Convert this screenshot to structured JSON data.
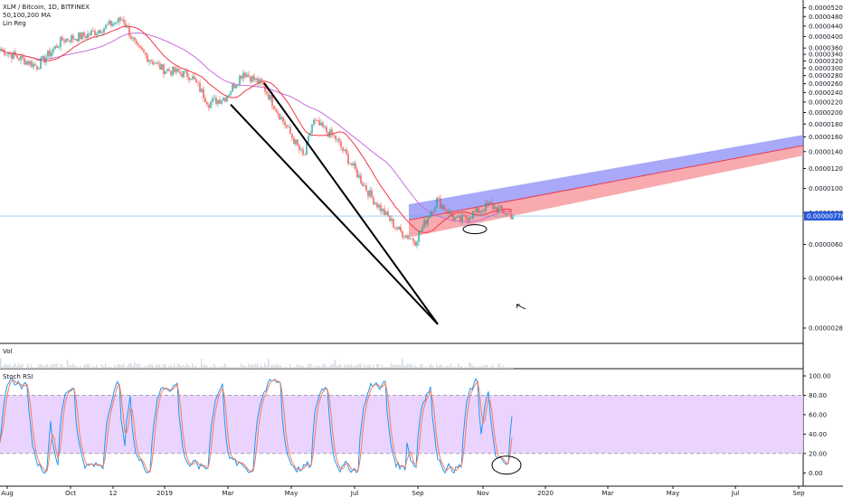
{
  "header": {
    "symbol_line": "XLM / Bitcoin, 1D, BITFINEX",
    "indicator_ma": "50,100,200 MA",
    "indicator_linreg": "Lin Reg"
  },
  "panes": {
    "volume_label": "Vol",
    "stoch_label": "Stoch RSI"
  },
  "price_marker": "0.00000778",
  "colors": {
    "ma_short": "#f23645",
    "ma_long": "#c56fdb",
    "band_upper": "#8b8cf5",
    "band_lower": "#f58d94",
    "rsi_fill": "#e6ccff",
    "k_line": "#2196f3",
    "d_line": "#f57c59",
    "marker": "#2a5ada"
  },
  "chart_data": [
    {
      "type": "candlestick",
      "title": "XLM / Bitcoin, 1D, BITFINEX",
      "y_axis_ticks": [
        "0.00005200",
        "0.00004800",
        "0.00004400",
        "0.00004000",
        "0.00003600",
        "0.00003400",
        "0.00003200",
        "0.00003000",
        "0.00002800",
        "0.00002600",
        "0.00002400",
        "0.00002200",
        "0.00002000",
        "0.00001800",
        "0.00001600",
        "0.00001400",
        "0.00001200",
        "0.00001000",
        "0.00000800",
        "0.00000600",
        "0.00000440",
        "0.00000280"
      ],
      "x_axis_ticks": [
        "Aug",
        "Oct",
        "12",
        "2019",
        "Mar",
        "May",
        "Jul",
        "Sep",
        "Nov",
        "2020",
        "Mar",
        "May",
        "Jul",
        "Sep"
      ],
      "scale": "log",
      "last_price": 7.78e-06,
      "price_path": [
        [
          "Aug",
          3.55e-05
        ],
        [
          "Sep",
          3.05e-05
        ],
        [
          "Oct",
          3.88e-05
        ],
        [
          "Nov",
          4.05e-05
        ],
        [
          "12",
          4.7e-05
        ],
        [
          "Dec",
          3.6e-05
        ],
        [
          "2019",
          2.98e-05
        ],
        [
          "Feb",
          2.8e-05
        ],
        [
          "Feb",
          2.18e-05
        ],
        [
          "Mar",
          2.3e-05
        ],
        [
          "Mar",
          2.9e-05
        ],
        [
          "Apr",
          2.55e-05
        ],
        [
          "May",
          1.32e-05
        ],
        [
          "May",
          1.85e-05
        ],
        [
          "Jun",
          1.58e-05
        ],
        [
          "Jul",
          9.2e-06
        ],
        [
          "Aug",
          6.8e-06
        ],
        [
          "Sep",
          6.2e-06
        ],
        [
          "Sep",
          9e-06
        ],
        [
          "Oct",
          7.4e-06
        ],
        [
          "Nov",
          8.6e-06
        ],
        [
          "Nov",
          7.8e-06
        ]
      ],
      "series": [
        {
          "name": "50,100,200 MA",
          "values": []
        },
        {
          "name": "Lin Reg",
          "values": []
        }
      ]
    },
    {
      "type": "line",
      "title": "Stoch RSI",
      "y_axis_ticks": [
        "100.00",
        "80.00",
        "60.00",
        "40.00",
        "20.00",
        "0.00"
      ],
      "ylim": [
        0,
        100
      ],
      "band": [
        20,
        80
      ]
    }
  ]
}
